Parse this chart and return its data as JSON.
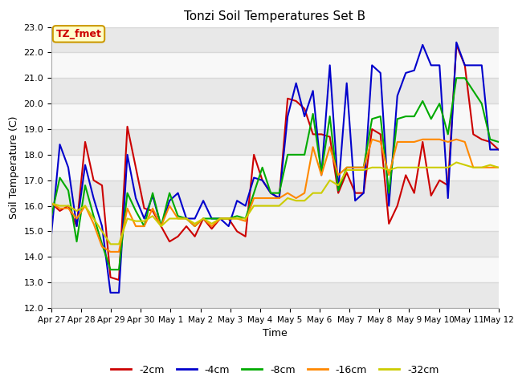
{
  "title": "Tonzi Soil Temperatures Set B",
  "xlabel": "Time",
  "ylabel": "Soil Temperature (C)",
  "annotation": "TZ_fmet",
  "ylim": [
    12.0,
    23.0
  ],
  "yticks": [
    12.0,
    13.0,
    14.0,
    15.0,
    16.0,
    17.0,
    18.0,
    19.0,
    20.0,
    21.0,
    22.0,
    23.0
  ],
  "xtick_labels": [
    "Apr 27",
    "Apr 28",
    "Apr 29",
    "Apr 30",
    "May 1",
    "May 2",
    "May 3",
    "May 4",
    "May 5",
    "May 6",
    "May 7",
    "May 8",
    "May 9",
    "May 10",
    "May 11",
    "May 12"
  ],
  "series": {
    "-2cm": {
      "color": "#cc0000",
      "lw": 1.5,
      "y": [
        16.1,
        15.8,
        16.0,
        15.2,
        18.5,
        17.0,
        16.8,
        13.2,
        13.1,
        19.1,
        17.5,
        15.9,
        15.8,
        15.2,
        14.6,
        14.8,
        15.2,
        14.8,
        15.5,
        15.1,
        15.5,
        15.5,
        15.0,
        14.8,
        18.0,
        17.0,
        16.5,
        16.3,
        20.2,
        20.1,
        19.8,
        18.8,
        18.8,
        18.7,
        16.5,
        17.3,
        16.5,
        16.5,
        19.0,
        18.8,
        15.3,
        16.0,
        17.2,
        16.5,
        18.5,
        16.4,
        17.0,
        16.8,
        22.3,
        21.5,
        18.8,
        18.6,
        18.5,
        18.2
      ]
    },
    "-4cm": {
      "color": "#0000cc",
      "lw": 1.5,
      "y": [
        14.9,
        18.4,
        17.5,
        15.2,
        17.6,
        16.3,
        15.2,
        12.6,
        12.6,
        18.0,
        16.3,
        15.5,
        16.4,
        15.2,
        16.2,
        16.5,
        15.5,
        15.5,
        16.2,
        15.5,
        15.5,
        15.2,
        16.2,
        16.0,
        17.1,
        17.0,
        16.5,
        16.3,
        19.5,
        20.8,
        19.5,
        20.5,
        17.2,
        21.5,
        16.6,
        20.8,
        16.2,
        16.5,
        21.5,
        21.2,
        16.0,
        20.3,
        21.2,
        21.3,
        22.3,
        21.5,
        21.5,
        16.3,
        22.4,
        21.5,
        21.5,
        21.5,
        18.2,
        18.2
      ]
    },
    "-8cm": {
      "color": "#00aa00",
      "lw": 1.5,
      "y": [
        15.6,
        17.1,
        16.6,
        14.6,
        16.8,
        15.6,
        14.5,
        13.5,
        13.5,
        16.5,
        15.8,
        15.2,
        16.5,
        15.2,
        16.5,
        15.6,
        15.5,
        15.2,
        15.5,
        15.5,
        15.5,
        15.5,
        15.6,
        15.5,
        16.5,
        17.5,
        16.5,
        16.5,
        18.0,
        18.0,
        18.0,
        19.6,
        17.3,
        19.5,
        16.6,
        17.5,
        17.5,
        17.5,
        19.4,
        19.5,
        16.5,
        19.4,
        19.5,
        19.5,
        20.1,
        19.4,
        20.0,
        18.8,
        21.0,
        21.0,
        20.5,
        20.0,
        18.6,
        18.5
      ]
    },
    "-16cm": {
      "color": "#ff8800",
      "lw": 1.5,
      "y": [
        16.1,
        15.9,
        15.9,
        15.5,
        16.0,
        15.3,
        14.4,
        14.2,
        14.2,
        15.9,
        15.2,
        15.2,
        15.9,
        15.2,
        16.0,
        15.5,
        15.5,
        15.2,
        15.5,
        15.2,
        15.5,
        15.5,
        15.5,
        15.4,
        16.3,
        16.3,
        16.3,
        16.3,
        16.5,
        16.3,
        16.5,
        18.3,
        17.2,
        18.3,
        17.2,
        17.5,
        17.5,
        17.5,
        18.6,
        18.5,
        17.2,
        18.5,
        18.5,
        18.5,
        18.6,
        18.6,
        18.6,
        18.5,
        18.6,
        18.5,
        17.5,
        17.5,
        17.5,
        17.5
      ]
    },
    "-32cm": {
      "color": "#cccc00",
      "lw": 1.5,
      "y": [
        16.1,
        16.0,
        16.0,
        15.8,
        16.0,
        15.5,
        15.0,
        14.5,
        14.5,
        15.5,
        15.4,
        15.4,
        15.6,
        15.2,
        15.5,
        15.5,
        15.5,
        15.3,
        15.5,
        15.3,
        15.5,
        15.5,
        15.5,
        15.5,
        16.0,
        16.0,
        16.0,
        16.0,
        16.3,
        16.2,
        16.2,
        16.5,
        16.5,
        17.0,
        16.8,
        17.4,
        17.4,
        17.4,
        17.5,
        17.5,
        17.4,
        17.5,
        17.5,
        17.5,
        17.5,
        17.5,
        17.5,
        17.5,
        17.7,
        17.6,
        17.5,
        17.5,
        17.6,
        17.5
      ]
    }
  },
  "n_points": 54,
  "fig_bg": "#ffffff",
  "plot_bg": "#ffffff",
  "grid_color": "#d8d8d8",
  "annotation_bg": "#ffffcc",
  "annotation_border": "#cc9900",
  "annotation_text_color": "#cc0000",
  "legend_order": [
    "-2cm",
    "-4cm",
    "-8cm",
    "-16cm",
    "-32cm"
  ],
  "legend_colors": [
    "#cc0000",
    "#0000cc",
    "#00aa00",
    "#ff8800",
    "#cccc00"
  ]
}
